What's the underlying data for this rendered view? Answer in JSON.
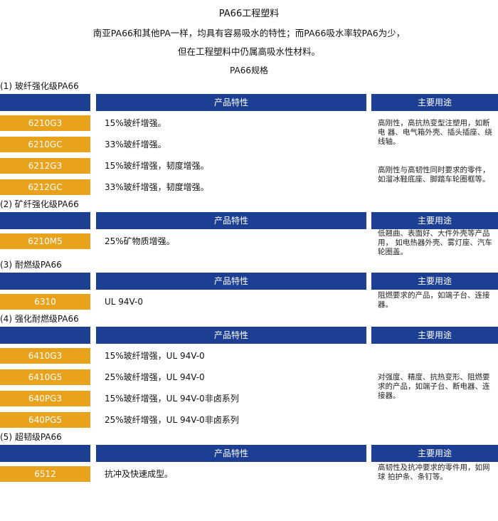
{
  "header": {
    "title": "PA66工程塑料",
    "intro": [
      "南亚PA66和其他PA一样，均具有容易吸水的特性；而PA66吸水率较PA6为少，",
      "但在工程塑料中仍属高吸水性材料。"
    ],
    "spec_title": "PA66规格"
  },
  "sections": [
    {
      "title": "(1) 玻纤强化级PA66",
      "header": {
        "property": "产品特性",
        "use": "主要用途"
      },
      "groups": [
        {
          "use": "高刚性，高抗热变型注塑用，如断电 器、电气箱外壳、插头插座、绕线轴。",
          "rows": [
            {
              "grade": "6210G3",
              "property": "15%玻纤增强。"
            },
            {
              "grade": "6210GC",
              "property": "33%玻纤增强。"
            }
          ]
        },
        {
          "use": "高刚性与高韧性同时要求的零件，如溜冰鞋底座、脚踏车轮圈框等。",
          "rows": [
            {
              "grade": "6212G3",
              "property": "15%玻纤增强，韧度增强。"
            },
            {
              "grade": "6212GC",
              "property": "33%玻纤增强，韧度增强。"
            }
          ]
        }
      ]
    },
    {
      "title": "(2) 矿纤强化级PA66",
      "header": {
        "property": "产品特性",
        "use": "主要用途"
      },
      "groups": [
        {
          "use": "低翘曲、表面好、大件外壳等产品用， 如电热器外壳、雾灯座、汽车轮圈盖。",
          "rows": [
            {
              "grade": "6210M5",
              "property": "25%矿物质增强。"
            }
          ]
        }
      ]
    },
    {
      "title": "(3) 耐燃级PA66",
      "header": {
        "property": "产品特性",
        "use": "主要用途"
      },
      "groups": [
        {
          "use": "阻燃要求的产品，如端子台、连接器。",
          "rows": [
            {
              "grade": "6310",
              "property": "UL 94V-0"
            }
          ]
        }
      ]
    },
    {
      "title": "(4) 强化耐燃级PA66",
      "header": {
        "property": "产品特性",
        "use": "主要用途"
      },
      "groups": [
        {
          "use": "对强度、精度、抗热变形、阻燃要求的产品，如端子台、断电器、连接器。",
          "rows": [
            {
              "grade": "6410G3",
              "property": "15%玻纤增强，UL 94V-0"
            },
            {
              "grade": "6410G5",
              "property": "25%玻纤增强，UL 94V-0"
            },
            {
              "grade": "640PG3",
              "property": "15%玻纤增强，UL 94V-0非卤系列"
            },
            {
              "grade": "640PG5",
              "property": "25%玻纤增强，UL 94V-0非卤系列"
            }
          ]
        }
      ]
    },
    {
      "title": "(5) 超韧级PA66",
      "header": {
        "property": "产品特性",
        "use": "主要用途"
      },
      "groups": [
        {
          "use": "高韧性及抗冲要求的零件用，如网球 拍护条、条钉等。",
          "rows": [
            {
              "grade": "6512",
              "property": "抗冲及快速成型。"
            }
          ]
        }
      ]
    }
  ]
}
